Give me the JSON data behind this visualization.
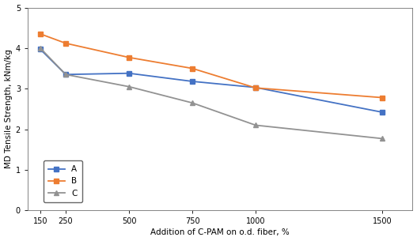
{
  "x": [
    150,
    250,
    500,
    750,
    1000,
    1500
  ],
  "series_A": {
    "label": "A",
    "values": [
      3.97,
      3.35,
      3.38,
      3.18,
      3.03,
      2.42
    ],
    "color": "#4472C4",
    "marker": "s",
    "linestyle": "-"
  },
  "series_B": {
    "label": "B",
    "values": [
      4.35,
      4.12,
      3.77,
      3.5,
      3.02,
      2.78
    ],
    "color": "#ED7D31",
    "marker": "s",
    "linestyle": "-"
  },
  "series_C": {
    "label": "C",
    "values": [
      4.0,
      3.35,
      3.05,
      2.65,
      2.1,
      1.77
    ],
    "color": "#929292",
    "marker": "^",
    "linestyle": "-"
  },
  "xlabel": "Addition of C-PAM on o.d. fiber, %",
  "ylabel": "MD Tensile Strength, kNm/kg",
  "ylim": [
    0,
    5
  ],
  "yticks": [
    0,
    1,
    2,
    3,
    4,
    5
  ],
  "xticks": [
    150,
    250,
    500,
    750,
    1000,
    1500
  ],
  "legend_loc": "lower left",
  "background_color": "#ffffff",
  "plot_bg": "#ffffff",
  "border_color": "#404040",
  "outer_border_color": "#606060"
}
